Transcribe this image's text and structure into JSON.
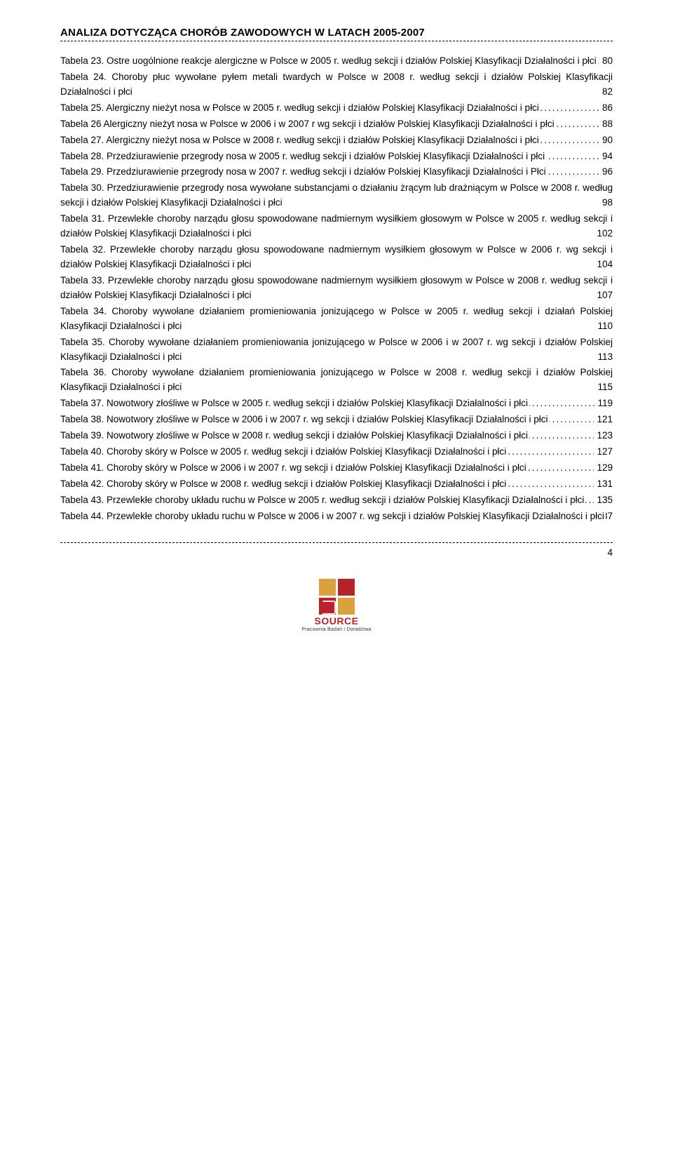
{
  "header": {
    "title": "ANALIZA DOTYCZĄCA CHORÓB ZAWODOWYCH W LATACH 2005-2007"
  },
  "toc": [
    {
      "text": "Tabela 23. Ostre uogólnione reakcje alergiczne w Polsce w 2005 r. według sekcji i działów Polskiej Klasyfikacji Działalności i płci",
      "page": "80"
    },
    {
      "text": "Tabela 24. Choroby płuc wywołane pyłem metali twardych w Polsce w 2008 r. według sekcji i działów Polskiej Klasyfikacji Działalności i płci",
      "page": "82"
    },
    {
      "text": "Tabela 25. Alergiczny nieżyt nosa w Polsce w 2005 r. według sekcji i działów Polskiej Klasyfikacji Działalności i płci",
      "page": "86"
    },
    {
      "text": "Tabela 26 Alergiczny nieżyt nosa w Polsce w 2006 i w 2007 r wg sekcji i działów Polskiej Klasyfikacji Działalności i płci",
      "page": "88"
    },
    {
      "text": "Tabela 27. Alergiczny nieżyt nosa w Polsce w 2008 r. według sekcji i działów Polskiej Klasyfikacji Działalności i płci",
      "page": "90"
    },
    {
      "text": "Tabela 28. Przedziurawienie przegrody nosa w 2005 r. według sekcji i działów Polskiej Klasyfikacji Działalności i płci",
      "page": "94"
    },
    {
      "text": "Tabela 29. Przedziurawienie przegrody nosa w 2007 r. według sekcji i działów Polskiej Klasyfikacji Działalności i Płci",
      "page": "96"
    },
    {
      "text": "Tabela 30. Przedziurawienie przegrody nosa wywołane substancjami o działaniu żrącym lub drażniącym w Polsce w  2008 r. według sekcji i działów Polskiej Klasyfikacji Działalności i płci ",
      "page": "98"
    },
    {
      "text": "Tabela 31. Przewlekłe choroby narządu głosu spowodowane nadmiernym wysiłkiem głosowym w Polsce w 2005 r. według sekcji i działów Polskiej Klasyfikacji Działalności i płci ",
      "page": "102"
    },
    {
      "text": "Tabela 32. Przewlekłe choroby narządu głosu spowodowane nadmiernym wysiłkiem głosowym w Polsce w 2006 r. wg sekcji i działów Polskiej Klasyfikacji Działalności i płci",
      "page": "104"
    },
    {
      "text": "Tabela 33. Przewlekłe choroby narządu głosu spowodowane nadmiernym wysiłkiem głosowym w Polsce w 2008 r. według sekcji i działów Polskiej Klasyfikacji Działalności i płci ",
      "page": "107"
    },
    {
      "text": "Tabela 34. Choroby wywołane działaniem promieniowania jonizującego w Polsce w 2005 r. według sekcji i działań Polskiej Klasyfikacji Działalności i płci",
      "page": "110"
    },
    {
      "text": "Tabela 35. Choroby wywołane działaniem promieniowania jonizującego w  Polsce w 2006 i w 2007 r. wg sekcji i działów Polskiej Klasyfikacji Działalności i płci",
      "page": "113"
    },
    {
      "text": "Tabela 36. Choroby wywołane działaniem promieniowania jonizującego w Polsce w  2008 r. według sekcji i działów Polskiej Klasyfikacji Działalności i płci",
      "page": "115"
    },
    {
      "text": "Tabela 37. Nowotwory złośliwe w Polsce w 2005 r. według sekcji i działów Polskiej Klasyfikacji Działalności i płci",
      "page": "119"
    },
    {
      "text": "Tabela 38. Nowotwory złośliwe w Polsce w 2006 i w 2007 r. wg sekcji i działów Polskiej Klasyfikacji Działalności i płci",
      "page": "121"
    },
    {
      "text": "Tabela 39. Nowotwory złośliwe w Polsce w  2008 r. według sekcji i działów Polskiej Klasyfikacji Działalności i płci",
      "page": "123"
    },
    {
      "text": "Tabela 40. Choroby skóry w Polsce w 2005 r. według sekcji i działów Polskiej Klasyfikacji Działalności i płci",
      "page": "127"
    },
    {
      "text": "Tabela 41. Choroby skóry w Polsce w 2006 i w 2007 r. wg sekcji i działów Polskiej Klasyfikacji Działalności i płci",
      "page": "129"
    },
    {
      "text": "Tabela 42. Choroby skóry w Polsce w  2008 r. według sekcji i działów Polskiej Klasyfikacji Działalności i płci",
      "page": "131"
    },
    {
      "text": "Tabela 43. Przewlekłe choroby układu ruchu w Polsce w 2005 r. według sekcji i działów Polskiej Klasyfikacji Działalności i płci",
      "page": "135"
    },
    {
      "text": "Tabela 44. Przewlekłe choroby układu ruchu w Polsce w 2006 i w 2007 r. wg sekcji i działów Polskiej Klasyfikacji Działalności i płci",
      "page": "137"
    }
  ],
  "footer": {
    "page_number": "4",
    "logo_text": "SOURCE",
    "logo_sub": "Pracownia Badań i Doradztwa"
  }
}
